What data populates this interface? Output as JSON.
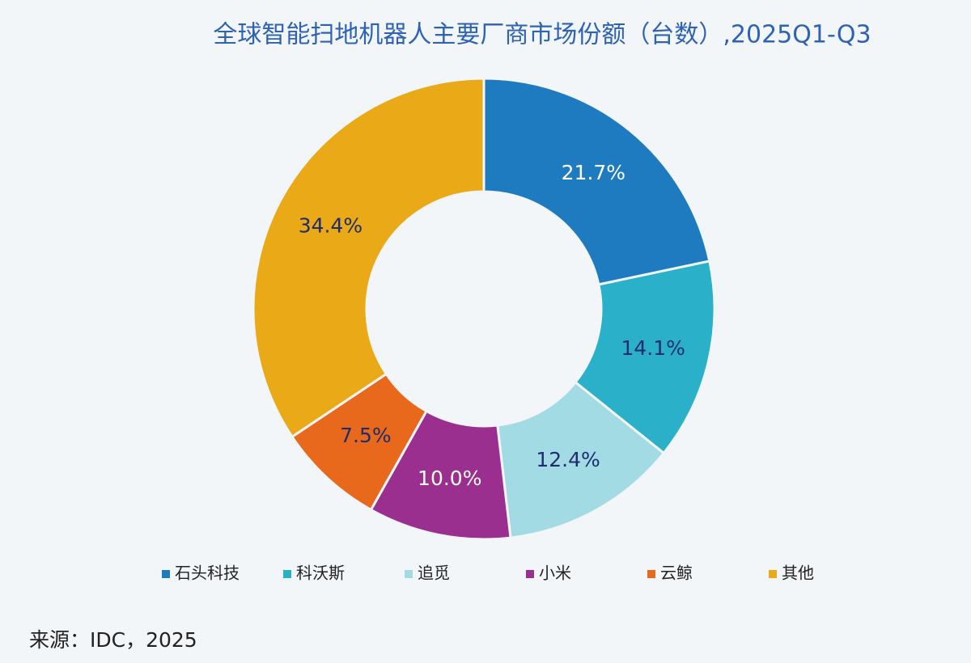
{
  "chart_data": {
    "type": "donut",
    "title": "全球智能扫地机器人主要厂商市场份额（台数）,2025Q1-Q3",
    "categories": [
      "石头科技",
      "科沃斯",
      "追觅",
      "小米",
      "云鲸",
      "其他"
    ],
    "values": [
      21.7,
      14.1,
      12.4,
      10.0,
      7.5,
      34.4
    ],
    "value_labels": [
      "21.7%",
      "14.1%",
      "12.4%",
      "10.0%",
      "7.5%",
      "34.4%"
    ],
    "colors": [
      "#1f7bbf",
      "#2ab0c9",
      "#a3dbe5",
      "#9b2f8f",
      "#e8681c",
      "#eaa916"
    ],
    "legend": "bottom",
    "source": "来源：IDC，2025"
  }
}
